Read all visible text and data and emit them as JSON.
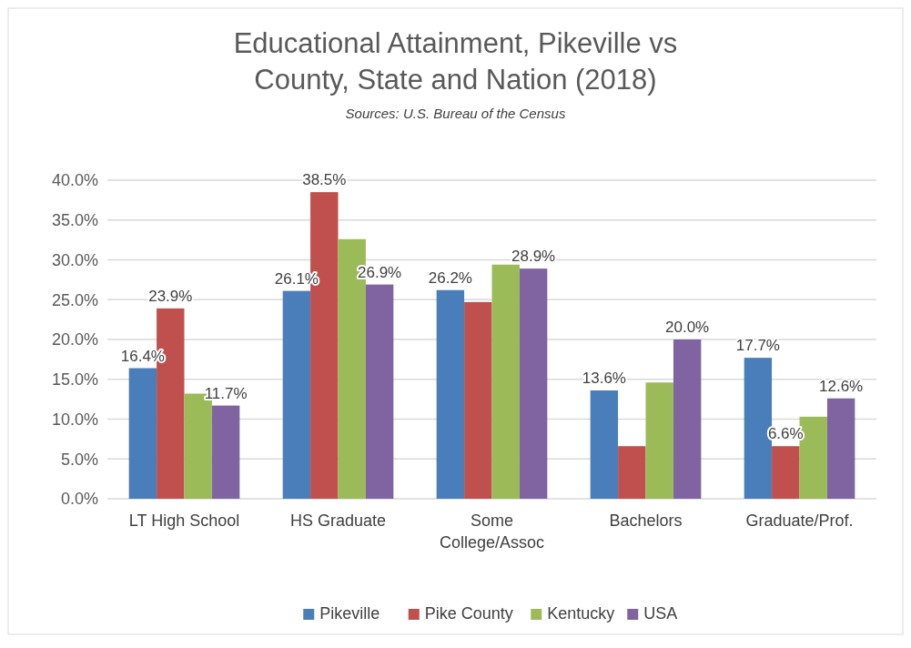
{
  "chart_data": {
    "type": "bar",
    "title": "Educational Attainment, Pikeville vs County, State and Nation (2018)",
    "subtitle": "Sources: U.S. Bureau of the Census",
    "categories": [
      "LT High School",
      "HS Graduate",
      "Some College/Assoc",
      "Bachelors",
      "Graduate/Prof."
    ],
    "series": [
      {
        "name": "Pikeville",
        "color": "#4a7ebb",
        "values": [
          16.4,
          26.1,
          26.2,
          13.6,
          17.7
        ],
        "value_labels": [
          "16.4%",
          "26.1%",
          "26.2%",
          "13.6%",
          "17.7%"
        ]
      },
      {
        "name": "Pike County",
        "color": "#c0504d",
        "values": [
          23.9,
          38.5,
          24.7,
          6.6,
          6.6
        ],
        "value_labels": [
          "23.9%",
          "38.5%",
          null,
          null,
          "6.6%"
        ]
      },
      {
        "name": "Kentucky",
        "color": "#9bbb59",
        "values": [
          13.2,
          32.6,
          29.4,
          14.6,
          10.3
        ],
        "value_labels": [
          null,
          null,
          null,
          null,
          null
        ]
      },
      {
        "name": "USA",
        "color": "#8064a2",
        "values": [
          11.7,
          26.9,
          28.9,
          20.0,
          12.6
        ],
        "value_labels": [
          "11.7%",
          "26.9%",
          "28.9%",
          "20.0%",
          "12.6%"
        ]
      }
    ],
    "ylim": [
      0,
      40
    ],
    "yticks": [
      {
        "value": 0,
        "label": "0.0%"
      },
      {
        "value": 5,
        "label": "5.0%"
      },
      {
        "value": 10,
        "label": "10.0%"
      },
      {
        "value": 15,
        "label": "15.0%"
      },
      {
        "value": 20,
        "label": "20.0%"
      },
      {
        "value": 25,
        "label": "25.0%"
      },
      {
        "value": 30,
        "label": "30.0%"
      },
      {
        "value": 35,
        "label": "35.0%"
      },
      {
        "value": 40,
        "label": "40.0%"
      }
    ],
    "grid": "y",
    "legend": "bottom"
  }
}
